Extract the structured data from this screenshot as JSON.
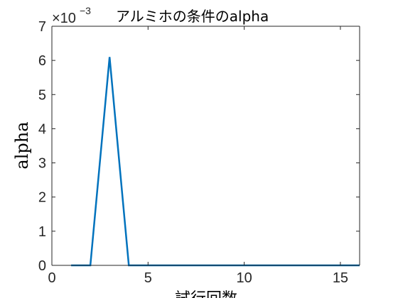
{
  "chart_data": {
    "type": "line",
    "title": "アルミホの条件のalpha",
    "xlabel": "試行回数",
    "ylabel": "alpha",
    "exponent_base": "×10",
    "exponent_power": "−3",
    "xlim": [
      0,
      16
    ],
    "ylim": [
      0,
      0.007
    ],
    "x_ticks": [
      0,
      5,
      10,
      15
    ],
    "y_ticks": [
      0,
      1,
      2,
      3,
      4,
      5,
      6,
      7
    ],
    "grid": false,
    "series": [
      {
        "color": "#0072bd",
        "x": [
          1,
          2,
          3,
          4,
          5,
          6,
          7,
          8,
          9,
          10,
          11,
          12,
          13,
          14,
          15,
          16
        ],
        "y": [
          0,
          0,
          0.0061,
          0,
          0,
          0,
          0,
          0,
          0,
          0,
          0,
          0,
          0,
          0,
          0,
          0
        ]
      }
    ]
  }
}
